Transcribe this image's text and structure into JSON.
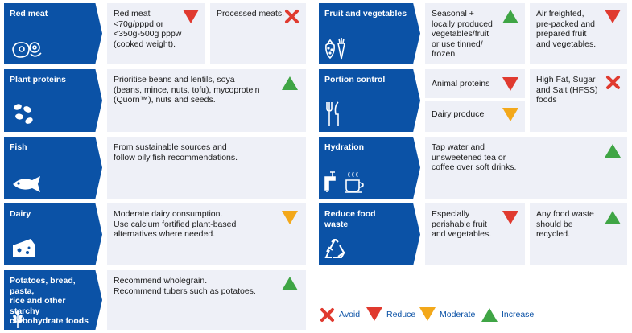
{
  "colors": {
    "header_blue": "#0b52a6",
    "cell_bg": "#eef0f7",
    "avoid": "#e03a2f",
    "reduce": "#e03a2f",
    "moderate": "#f3a81a",
    "increase": "#3fa545"
  },
  "rows": {
    "red_meat": {
      "header": "Red meat",
      "icon": "meat-icon",
      "cell1": {
        "text": "Red meat\n<70g/pppd or\n<350g-500g pppw\n(cooked weight).",
        "mark": "reduce"
      },
      "cell2": {
        "text": "Processed meats.",
        "mark": "avoid"
      }
    },
    "plant_proteins": {
      "header": "Plant proteins",
      "icon": "beans-icon",
      "cell1": {
        "text": "Prioritise beans and lentils, soya\n(beans, mince, nuts, tofu), mycoprotein\n(Quorn™), nuts and seeds.",
        "mark": "increase"
      }
    },
    "fish": {
      "header": "Fish",
      "icon": "fish-icon",
      "cell1": {
        "text": "From sustainable sources and\nfollow oily fish recommendations."
      }
    },
    "dairy": {
      "header": "Dairy",
      "icon": "cheese-icon",
      "cell1": {
        "text": "Moderate dairy consumption.\nUse calcium fortified plant-based\nalternatives where needed.",
        "mark": "moderate"
      }
    },
    "starch": {
      "header": "Potatoes, bread, pasta,\nrice and other starchy\ncarbohydrate foods",
      "icon": "wheat-icon",
      "cell1": {
        "text": "Recommend wholegrain.\nRecommend tubers such as potatoes.",
        "mark": "increase"
      }
    },
    "fruit_veg": {
      "header": "Fruit and vegetables",
      "icon": "strawberry-carrot-icon",
      "cell1": {
        "text": "Seasonal +\nlocally produced\nvegetables/fruit\nor use tinned/\nfrozen.",
        "mark": "increase"
      },
      "cell2": {
        "text": "Air freighted,\npre-packed and\nprepared fruit\nand vegetables.",
        "mark": "reduce"
      }
    },
    "portion": {
      "header": "Portion control",
      "icon": "cutlery-icon",
      "cell1a": {
        "text": "Animal proteins",
        "mark": "reduce"
      },
      "cell1b": {
        "text": "Dairy produce",
        "mark": "moderate"
      },
      "cell2": {
        "text": "High Fat, Sugar\nand Salt (HFSS)\nfoods",
        "mark": "avoid"
      }
    },
    "hydration": {
      "header": "Hydration",
      "icon": "tap-cup-icon",
      "cell1": {
        "text": "Tap water and\nunsweetened tea or\ncoffee over soft drinks.",
        "mark": "increase"
      }
    },
    "waste": {
      "header": "Reduce food\nwaste",
      "icon": "recycle-icon",
      "cell1": {
        "text": "Especially\nperishable fruit\nand vegetables.",
        "mark": "reduce"
      },
      "cell2": {
        "text": "Any food waste\nshould be\nrecycled.",
        "mark": "increase"
      }
    }
  },
  "legend": {
    "avoid": "Avoid",
    "reduce": "Reduce",
    "moderate": "Moderate",
    "increase": "Increase"
  }
}
